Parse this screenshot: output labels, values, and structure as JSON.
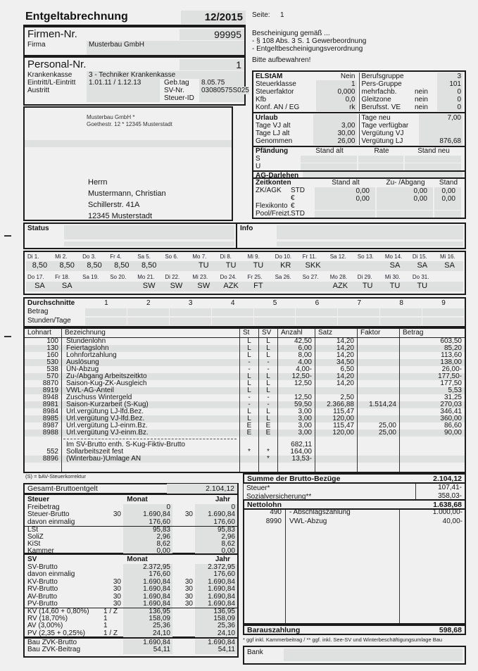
{
  "header": {
    "title": "Entgeltabrechnung",
    "period": "12/2015",
    "seite_label": "Seite:",
    "seite_value": "1",
    "notice_lines": [
      "Bescheinigung gemäß ...",
      "- § 108 Abs. 3 S. 1 Gewerbeordnung",
      "- Entgeltbescheinigungsverordnung"
    ],
    "keep_note": "Bitte aufbewahren!"
  },
  "firma": {
    "label": "Firmen-Nr.",
    "number": "99995",
    "firma_label": "Firma",
    "firma_name": "Musterbau GmbH"
  },
  "personal": {
    "label": "Personal-Nr.",
    "number": "1",
    "rows": [
      {
        "label": "Krankenkasse",
        "value": "3 - Techniker Krankenkasse"
      },
      {
        "label": "Eintritt/L-Eintritt",
        "value": "1.01.11 /  1.12.13",
        "label2": "Geb.tag",
        "value2": "8.05.75"
      },
      {
        "label": "Austritt",
        "value": "",
        "label2": "SV-Nr.",
        "value2": "03080575S025"
      },
      {
        "label": "",
        "value": "",
        "label2": "Steuer-ID",
        "value2": ""
      }
    ]
  },
  "address": {
    "sender_line1": "Musterbau GmbH *",
    "sender_line2": "Goethestr. 12 * 12345 Musterstadt",
    "recipient": [
      "Herrn",
      "Mustermann, Christian",
      "Schillerstr. 41A",
      "12345 Musterstadt"
    ]
  },
  "elstam": {
    "left": [
      [
        "ELStAM",
        "Nein"
      ],
      [
        "Steuerklasse",
        "1"
      ],
      [
        "Steuerfaktor",
        "0,000"
      ],
      [
        "Kfb",
        "0,0"
      ],
      [
        "Konf. AN / EG",
        "rk"
      ]
    ],
    "right": [
      [
        "Berufsgruppe",
        "",
        "3"
      ],
      [
        "Pers-Gruppe",
        "",
        "101"
      ],
      [
        "mehrfachb.",
        "nein",
        "0"
      ],
      [
        "Gleitzone",
        "nein",
        "0"
      ],
      [
        "Berufsst. VE",
        "nein",
        "0"
      ]
    ]
  },
  "urlaub": {
    "left": [
      [
        "Urlaub",
        ""
      ],
      [
        "Tage VJ alt",
        "3,00"
      ],
      [
        "Tage LJ alt",
        "30,00"
      ],
      [
        "Genommen",
        "26,00"
      ]
    ],
    "right": [
      [
        "Tage neu",
        "7,00"
      ],
      [
        "Tage verfügbar",
        ""
      ],
      [
        "Vergütung VJ",
        ""
      ],
      [
        "Vergütung LJ",
        "876,68"
      ]
    ]
  },
  "pfaendung": {
    "headers": [
      "Pfändung",
      "Stand alt",
      "Rate",
      "Stand neu"
    ],
    "rows": [
      "S",
      "U"
    ],
    "darlehen_label": "AG-Darlehen"
  },
  "zeitkonten": {
    "headers": [
      "Zeitkonten",
      "Stand alt",
      "Zu- /Abgang",
      "Stand neu"
    ],
    "rows": [
      {
        "label": "ZK/AGK",
        "unit": "STD",
        "c1": "0,00",
        "c2": "0,00",
        "c3": "0,00"
      },
      {
        "label": "",
        "unit": "€",
        "c1": "0,00",
        "c2": "0,00",
        "c3": "0,00"
      },
      {
        "label": "Flexikonto",
        "unit": "€",
        "c1": "",
        "c2": "",
        "c3": ""
      },
      {
        "label": "Pool/Freizt.",
        "unit": "STD",
        "c1": "",
        "c2": "",
        "c3": ""
      }
    ]
  },
  "status": {
    "label": "Status"
  },
  "info": {
    "label": "Info"
  },
  "calendar": {
    "rows": [
      [
        {
          "d": "Di 1.",
          "v": "8,50"
        },
        {
          "d": "Mi 2.",
          "v": "8,50"
        },
        {
          "d": "Do 3.",
          "v": "8,50"
        },
        {
          "d": "Fr 4.",
          "v": "8,50"
        },
        {
          "d": "Sa 5.",
          "v": "8,50"
        },
        {
          "d": "So 6.",
          "v": ""
        },
        {
          "d": "Mo 7.",
          "v": "TU"
        },
        {
          "d": "Di 8.",
          "v": "TU"
        },
        {
          "d": "Mi 9.",
          "v": "TU"
        },
        {
          "d": "Do 10.",
          "v": "KR"
        },
        {
          "d": "Fr 11.",
          "v": "SKK"
        },
        {
          "d": "Sa 12.",
          "v": ""
        },
        {
          "d": "So 13.",
          "v": ""
        },
        {
          "d": "Mo 14.",
          "v": "SA"
        },
        {
          "d": "Di 15.",
          "v": "SA"
        },
        {
          "d": "Mi 16.",
          "v": "SA"
        }
      ],
      [
        {
          "d": "Do 17.",
          "v": "SA"
        },
        {
          "d": "Fr 18.",
          "v": "SA"
        },
        {
          "d": "Sa 19.",
          "v": ""
        },
        {
          "d": "So 20.",
          "v": ""
        },
        {
          "d": "Mo 21.",
          "v": "SW"
        },
        {
          "d": "Di 22.",
          "v": "SW"
        },
        {
          "d": "Mi 23.",
          "v": "SW"
        },
        {
          "d": "Do 24.",
          "v": "AZK"
        },
        {
          "d": "Fr 25.",
          "v": "FT"
        },
        {
          "d": "Sa 26.",
          "v": ""
        },
        {
          "d": "So 27.",
          "v": ""
        },
        {
          "d": "Mo 28.",
          "v": "AZK"
        },
        {
          "d": "Di 29.",
          "v": "TU"
        },
        {
          "d": "Mi 30.",
          "v": "TU"
        },
        {
          "d": "Do 31.",
          "v": "TU"
        },
        {
          "d": "",
          "v": ""
        }
      ]
    ]
  },
  "durchschnitte": {
    "title": "Durchschnitte",
    "columns": [
      "1",
      "2",
      "3",
      "4",
      "5",
      "6",
      "7",
      "8",
      "9"
    ],
    "row_labels": [
      "Betrag",
      "Stunden/Tage"
    ]
  },
  "lohnart_table": {
    "headers": [
      "Lohnart",
      "Bezeichnung",
      "St",
      "SV",
      "Anzahl",
      "Satz",
      "Faktor",
      "Betrag"
    ],
    "rows": [
      {
        "nr": "100",
        "text": "Stundenlohn",
        "st": "L",
        "sv": "L",
        "anzahl": "42,50",
        "satz": "14,20",
        "faktor": "",
        "betrag": "603,50",
        "shade": false
      },
      {
        "nr": "130",
        "text": "Feiertagslohn",
        "st": "L",
        "sv": "L",
        "anzahl": "6,00",
        "satz": "14,20",
        "faktor": "",
        "betrag": "85,20",
        "shade": true
      },
      {
        "nr": "160",
        "text": "Lohnfortzahlung",
        "st": "L",
        "sv": "L",
        "anzahl": "8,00",
        "satz": "14,20",
        "faktor": "",
        "betrag": "113,60",
        "shade": false
      },
      {
        "nr": "530",
        "text": "Auslösung",
        "st": "-",
        "sv": "-",
        "anzahl": "4,00",
        "satz": "34,50",
        "faktor": "",
        "betrag": "138,00",
        "shade": true
      },
      {
        "nr": "538",
        "text": "ÜN-Abzug",
        "st": "-",
        "sv": "-",
        "anzahl": "4,00-",
        "satz": "6,50",
        "faktor": "",
        "betrag": "26,00-",
        "shade": false
      },
      {
        "nr": "570",
        "text": "Zu-/Abgang Arbeitszeitkto",
        "st": "L",
        "sv": "L",
        "anzahl": "12,50-",
        "satz": "14,20",
        "faktor": "",
        "betrag": "177,50-",
        "shade": true
      },
      {
        "nr": "8870",
        "text": "Saison-Kug-ZK-Ausgleich",
        "st": "L",
        "sv": "L",
        "anzahl": "12,50",
        "satz": "14,20",
        "faktor": "",
        "betrag": "177,50",
        "shade": false
      },
      {
        "nr": "8919",
        "text": "VWL-AG-Anteil",
        "st": "L",
        "sv": "L",
        "anzahl": "",
        "satz": "",
        "faktor": "",
        "betrag": "5,53",
        "shade": true
      },
      {
        "nr": "8948",
        "text": "Zuschuss Wintergeld",
        "st": "-",
        "sv": "-",
        "anzahl": "12,50",
        "satz": "2,50",
        "faktor": "",
        "betrag": "31,25",
        "shade": false
      },
      {
        "nr": "8981",
        "text": "Saison-Kurzarbeit (S-Kug)",
        "st": "-",
        "sv": "-",
        "anzahl": "59,50",
        "satz": "2.366,88",
        "faktor": "1.514,24",
        "betrag": "270,03",
        "shade": true
      },
      {
        "nr": "8984",
        "text": "Url.vergütung LJ-lfd.Bez.",
        "st": "L",
        "sv": "L",
        "anzahl": "3,00",
        "satz": "115,47",
        "faktor": "",
        "betrag": "346,41",
        "shade": false
      },
      {
        "nr": "8985",
        "text": "Url.vergütung VJ-lfd.Bez.",
        "st": "L",
        "sv": "L",
        "anzahl": "3,00",
        "satz": "120,00",
        "faktor": "",
        "betrag": "360,00",
        "shade": true
      },
      {
        "nr": "8987",
        "text": "Url.vergütung LJ-einm.Bz.",
        "st": "E",
        "sv": "E",
        "anzahl": "3,00",
        "satz": "115,47",
        "faktor": "25,00",
        "betrag": "86,60",
        "shade": false
      },
      {
        "nr": "8988",
        "text": "Url.vergütung VJ-einm.Bz.",
        "st": "E",
        "sv": "E",
        "anzahl": "3,00",
        "satz": "120,00",
        "faktor": "25,00",
        "betrag": "90,00",
        "shade": true
      },
      {
        "sep": true
      },
      {
        "nr": "",
        "text": "Im SV-Brutto enth. S-Kug-Fiktiv-Brutto",
        "st": "",
        "sv": "",
        "anzahl": "682,11",
        "satz": "",
        "faktor": "",
        "betrag": "",
        "shade": false
      },
      {
        "nr": "552",
        "text": "Sollarbeitszeit fest",
        "st": "*",
        "sv": "*",
        "anzahl": "164,00",
        "satz": "",
        "faktor": "",
        "betrag": "",
        "shade": false
      },
      {
        "nr": "8896",
        "text": "(Winterbau-)Umlage AN",
        "st": "",
        "sv": "*",
        "anzahl": "13,53-",
        "satz": "",
        "faktor": "",
        "betrag": "",
        "shade": true
      }
    ],
    "note": "(S) = bAV-Steuerkorrektur"
  },
  "summary_left": {
    "gesamt_label": "Gesamt-Bruttoentgelt",
    "gesamt_value": "2.104,12",
    "steuer": {
      "title": "Steuer",
      "monat_label": "Monat",
      "jahr_label": "Jahr",
      "rows": [
        {
          "label": "Freibetrag",
          "m1": "",
          "m2": "0",
          "j1": "",
          "j2": "0"
        },
        {
          "label": "Steuer-Brutto",
          "m1": "30",
          "m2": "1.690,84",
          "j1": "30",
          "j2": "1.690,84"
        },
        {
          "label": "davon einmalig",
          "m1": "",
          "m2": "176,60",
          "j1": "",
          "j2": "176,60"
        }
      ],
      "tax_rows": [
        {
          "label": "LSt",
          "m": "95,83",
          "j": "95,83"
        },
        {
          "label": "SoliZ",
          "m": "2,96",
          "j": "2,96"
        },
        {
          "label": "KiSt",
          "m": "8,62",
          "j": "8,62"
        },
        {
          "label": "Kammer",
          "m": "0,00",
          "j": "0,00"
        }
      ]
    },
    "sv": {
      "title": "SV",
      "monat_label": "Monat",
      "jahr_label": "Jahr",
      "brutto_rows": [
        {
          "label": "SV-Brutto",
          "m1": "",
          "m2": "2.372,95",
          "j1": "",
          "j2": "2.372,95"
        },
        {
          "label": "davon einmalig",
          "m1": "",
          "m2": "176,60",
          "j1": "",
          "j2": "176,60"
        },
        {
          "label": "KV-Brutto",
          "m1": "30",
          "m2": "1.690,84",
          "j1": "30",
          "j2": "1.690,84"
        },
        {
          "label": "RV-Brutto",
          "m1": "30",
          "m2": "1.690,84",
          "j1": "30",
          "j2": "1.690,84"
        },
        {
          "label": "AV-Brutto",
          "m1": "30",
          "m2": "1.690,84",
          "j1": "30",
          "j2": "1.690,84"
        },
        {
          "label": "PV-Brutto",
          "m1": "30",
          "m2": "1.690,84",
          "j1": "30",
          "j2": "1.690,84"
        }
      ],
      "beitrag_rows": [
        {
          "label": "KV  (14,60 + 0,80%)",
          "key": "1 / Z",
          "m": "136,95",
          "j": "136,95"
        },
        {
          "label": "RV  (18,70%)",
          "key": "1",
          "m": "158,09",
          "j": "158,09"
        },
        {
          "label": "AV  (3,00%)",
          "key": "1",
          "m": "25,36",
          "j": "25,36"
        },
        {
          "label": "PV  (2,35 + 0,25%)",
          "key": "1 / Z",
          "m": "24,10",
          "j": "24,10"
        }
      ]
    },
    "zvk_rows": [
      {
        "label": "Bau ZVK-Brutto",
        "m": "1.690,84",
        "j": "1.690,84"
      },
      {
        "label": "Bau ZVK-Beitrag",
        "m": "54,11",
        "j": "54,11"
      }
    ]
  },
  "summary_right": {
    "summe_label": "Summe der Brutto-Bezüge",
    "summe_value": "2.104,12",
    "steuer_label": "Steuer*",
    "steuer_value": "107,41-",
    "sozial_label": "Sozialversicherung**",
    "sozial_value": "358,03-",
    "netto_label": "Nettolohn",
    "netto_value": "1.638,68",
    "deductions": [
      {
        "nr": "490",
        "label": "- Abschlagszahlung",
        "value": "1.000,00-"
      },
      {
        "nr": "8990",
        "label": "VWL-Abzug",
        "value": "40,00-"
      }
    ],
    "barauszahlung_label": "Barauszahlung",
    "barauszahlung_value": "598,68",
    "footnote": "* ggf inkl. Kammerbeitrag / ** ggf. inkl. See-SV und Winterbeschäftigungsumlage Bau",
    "bank_label": "Bank"
  }
}
